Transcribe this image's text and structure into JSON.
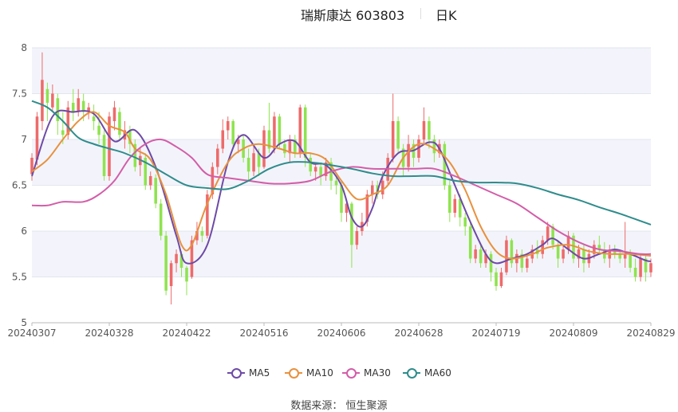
{
  "header": {
    "title": "瑞斯康达 603803",
    "tab": "日K"
  },
  "colors": {
    "up": "#ee6a6a",
    "down": "#8fe34f",
    "ma5": "#6e4aa6",
    "ma10": "#e8913e",
    "ma30": "#d35da8",
    "ma60": "#2f8c8c",
    "band": "#f3f4fb",
    "grid": "#e2e4ef"
  },
  "legend": [
    {
      "key": "ma5",
      "label": "MA5"
    },
    {
      "key": "ma10",
      "label": "MA10"
    },
    {
      "key": "ma30",
      "label": "MA30"
    },
    {
      "key": "ma60",
      "label": "MA60"
    }
  ],
  "source": "数据来源： 恒生聚源",
  "chart_data": {
    "type": "candlestick",
    "ylim": [
      5,
      8
    ],
    "yticks": [
      "5",
      "5.5",
      "6",
      "6.5",
      "7",
      "7.5",
      "8"
    ],
    "xtick_labels": [
      "20240307",
      "20240328",
      "20240422",
      "20240516",
      "20240606",
      "20240628",
      "20240719",
      "20240809",
      "20240829"
    ],
    "xtick_index": [
      0,
      15,
      30,
      45,
      60,
      75,
      90,
      105,
      120
    ],
    "candles": [
      [
        6.62,
        6.8,
        6.55,
        6.85
      ],
      [
        6.78,
        7.25,
        6.72,
        7.3
      ],
      [
        7.2,
        7.65,
        7.1,
        7.95
      ],
      [
        7.55,
        7.4,
        7.2,
        7.62
      ],
      [
        7.35,
        7.5,
        7.3,
        7.6
      ],
      [
        7.45,
        7.2,
        7.05,
        7.5
      ],
      [
        7.1,
        7.05,
        6.95,
        7.3
      ],
      [
        7.05,
        7.35,
        7.0,
        7.42
      ],
      [
        7.4,
        7.3,
        7.2,
        7.55
      ],
      [
        7.3,
        7.45,
        7.25,
        7.55
      ],
      [
        7.42,
        7.3,
        7.2,
        7.5
      ],
      [
        7.3,
        7.35,
        7.22,
        7.4
      ],
      [
        7.25,
        7.2,
        7.1,
        7.38
      ],
      [
        7.15,
        7.05,
        6.95,
        7.3
      ],
      [
        7.05,
        6.6,
        6.55,
        7.1
      ],
      [
        6.6,
        7.25,
        6.55,
        7.3
      ],
      [
        7.2,
        7.35,
        7.1,
        7.42
      ],
      [
        7.3,
        7.05,
        7.0,
        7.35
      ],
      [
        7.0,
        7.1,
        6.9,
        7.2
      ],
      [
        7.1,
        6.95,
        6.85,
        7.15
      ],
      [
        6.95,
        6.7,
        6.65,
        7.0
      ],
      [
        6.72,
        6.82,
        6.6,
        6.9
      ],
      [
        6.8,
        6.5,
        6.45,
        6.85
      ],
      [
        6.5,
        6.6,
        6.45,
        6.65
      ],
      [
        6.58,
        6.3,
        6.25,
        6.62
      ],
      [
        6.3,
        5.95,
        5.9,
        6.35
      ],
      [
        5.95,
        5.35,
        5.3,
        6.0
      ],
      [
        5.4,
        5.65,
        5.2,
        5.68
      ],
      [
        5.65,
        5.75,
        5.55,
        5.8
      ],
      [
        5.75,
        5.6,
        5.5,
        5.78
      ],
      [
        5.6,
        5.45,
        5.3,
        5.62
      ],
      [
        5.5,
        5.9,
        5.48,
        5.95
      ],
      [
        5.9,
        6.0,
        5.85,
        6.1
      ],
      [
        6.0,
        5.95,
        5.88,
        6.05
      ],
      [
        5.95,
        6.4,
        5.92,
        6.45
      ],
      [
        6.4,
        6.7,
        6.35,
        6.75
      ],
      [
        6.7,
        6.9,
        6.62,
        6.95
      ],
      [
        6.9,
        7.1,
        6.85,
        7.22
      ],
      [
        7.1,
        7.2,
        7.0,
        7.25
      ],
      [
        7.2,
        6.95,
        6.9,
        7.22
      ],
      [
        6.95,
        7.0,
        6.85,
        7.05
      ],
      [
        7.0,
        6.8,
        6.75,
        7.05
      ],
      [
        6.8,
        6.65,
        6.55,
        6.9
      ],
      [
        6.65,
        6.85,
        6.6,
        6.95
      ],
      [
        6.85,
        6.7,
        6.6,
        6.9
      ],
      [
        6.7,
        7.1,
        6.68,
        7.15
      ],
      [
        7.1,
        6.9,
        6.85,
        7.4
      ],
      [
        6.9,
        7.25,
        6.85,
        7.3
      ],
      [
        7.25,
        6.95,
        6.9,
        7.28
      ],
      [
        6.95,
        6.85,
        6.8,
        7.0
      ],
      [
        6.85,
        7.0,
        6.75,
        7.05
      ],
      [
        7.0,
        6.85,
        6.8,
        7.05
      ],
      [
        6.85,
        7.35,
        6.8,
        7.38
      ],
      [
        7.35,
        6.8,
        6.7,
        7.38
      ],
      [
        6.8,
        6.65,
        6.6,
        6.85
      ],
      [
        6.65,
        6.7,
        6.55,
        6.75
      ],
      [
        6.7,
        6.6,
        6.5,
        6.75
      ],
      [
        6.6,
        6.75,
        6.55,
        6.8
      ],
      [
        6.75,
        6.55,
        6.45,
        6.8
      ],
      [
        6.55,
        6.5,
        6.4,
        6.6
      ],
      [
        6.5,
        6.2,
        6.1,
        6.55
      ],
      [
        6.2,
        6.3,
        6.1,
        6.35
      ],
      [
        6.3,
        5.85,
        5.6,
        6.32
      ],
      [
        5.85,
        6.0,
        5.8,
        6.05
      ],
      [
        6.0,
        6.1,
        5.95,
        6.2
      ],
      [
        6.1,
        6.4,
        6.05,
        6.45
      ],
      [
        6.4,
        6.5,
        6.3,
        6.55
      ],
      [
        6.5,
        6.4,
        6.35,
        6.55
      ],
      [
        6.4,
        6.55,
        6.35,
        6.65
      ],
      [
        6.55,
        6.8,
        6.5,
        6.85
      ],
      [
        6.8,
        7.2,
        6.75,
        7.5
      ],
      [
        7.2,
        6.9,
        6.85,
        7.25
      ],
      [
        6.9,
        6.7,
        6.6,
        6.95
      ],
      [
        6.7,
        6.95,
        6.65,
        7.05
      ],
      [
        6.95,
        6.8,
        6.7,
        7.0
      ],
      [
        6.8,
        7.0,
        6.75,
        7.05
      ],
      [
        7.0,
        7.2,
        6.95,
        7.35
      ],
      [
        7.2,
        7.0,
        6.9,
        7.25
      ],
      [
        7.0,
        6.85,
        6.75,
        7.05
      ],
      [
        6.85,
        6.95,
        6.8,
        7.0
      ],
      [
        6.95,
        6.5,
        6.45,
        6.98
      ],
      [
        6.5,
        6.2,
        6.1,
        6.55
      ],
      [
        6.2,
        6.35,
        6.15,
        6.4
      ],
      [
        6.35,
        6.15,
        6.05,
        6.4
      ],
      [
        6.15,
        6.05,
        5.95,
        6.2
      ],
      [
        6.05,
        5.7,
        5.65,
        6.1
      ],
      [
        5.7,
        5.8,
        5.65,
        5.85
      ],
      [
        5.8,
        5.65,
        5.6,
        5.85
      ],
      [
        5.65,
        5.75,
        5.6,
        5.8
      ],
      [
        5.75,
        5.55,
        5.45,
        5.78
      ],
      [
        5.55,
        5.4,
        5.35,
        5.6
      ],
      [
        5.4,
        5.55,
        5.38,
        5.6
      ],
      [
        5.55,
        5.9,
        5.52,
        5.95
      ],
      [
        5.9,
        5.65,
        5.6,
        5.92
      ],
      [
        5.65,
        5.75,
        5.55,
        5.8
      ],
      [
        5.75,
        5.6,
        5.55,
        5.8
      ],
      [
        5.6,
        5.7,
        5.55,
        5.75
      ],
      [
        5.7,
        5.8,
        5.65,
        5.85
      ],
      [
        5.8,
        5.75,
        5.7,
        5.9
      ],
      [
        5.75,
        5.9,
        5.7,
        5.95
      ],
      [
        5.9,
        6.05,
        5.85,
        6.1
      ],
      [
        6.05,
        5.85,
        5.8,
        6.08
      ],
      [
        5.85,
        5.7,
        5.6,
        5.9
      ],
      [
        5.7,
        5.8,
        5.65,
        5.85
      ],
      [
        5.8,
        5.95,
        5.75,
        6.0
      ],
      [
        5.95,
        5.7,
        5.65,
        5.98
      ],
      [
        5.7,
        5.8,
        5.6,
        5.85
      ],
      [
        5.8,
        5.65,
        5.55,
        5.85
      ],
      [
        5.65,
        5.75,
        5.6,
        5.8
      ],
      [
        5.75,
        5.85,
        5.7,
        5.9
      ],
      [
        5.85,
        5.8,
        5.75,
        5.95
      ],
      [
        5.8,
        5.7,
        5.65,
        5.88
      ],
      [
        5.7,
        5.8,
        5.6,
        5.85
      ],
      [
        5.8,
        5.75,
        5.7,
        5.85
      ],
      [
        5.75,
        5.7,
        5.65,
        5.8
      ],
      [
        5.7,
        5.75,
        5.6,
        6.1
      ],
      [
        5.75,
        5.6,
        5.55,
        5.8
      ],
      [
        5.6,
        5.5,
        5.45,
        5.7
      ],
      [
        5.5,
        5.7,
        5.45,
        5.75
      ],
      [
        5.7,
        5.55,
        5.45,
        5.75
      ],
      [
        5.55,
        5.65,
        5.5,
        5.7
      ]
    ],
    "series": [
      {
        "key": "ma5",
        "name": "MA5",
        "points": [
          [
            0,
            6.6
          ],
          [
            4,
            7.25
          ],
          [
            8,
            7.3
          ],
          [
            12,
            7.28
          ],
          [
            16,
            6.98
          ],
          [
            20,
            7.1
          ],
          [
            24,
            6.7
          ],
          [
            28,
            5.95
          ],
          [
            30,
            5.65
          ],
          [
            34,
            5.85
          ],
          [
            38,
            6.75
          ],
          [
            41,
            7.05
          ],
          [
            45,
            6.8
          ],
          [
            48,
            6.95
          ],
          [
            51,
            6.98
          ],
          [
            54,
            6.75
          ],
          [
            57,
            6.72
          ],
          [
            60,
            6.5
          ],
          [
            62,
            6.15
          ],
          [
            64,
            6.05
          ],
          [
            66,
            6.25
          ],
          [
            68,
            6.6
          ],
          [
            71,
            6.85
          ],
          [
            74,
            6.88
          ],
          [
            77,
            6.97
          ],
          [
            79,
            6.9
          ],
          [
            82,
            6.5
          ],
          [
            85,
            6.1
          ],
          [
            88,
            5.75
          ],
          [
            90,
            5.65
          ],
          [
            93,
            5.7
          ],
          [
            96,
            5.75
          ],
          [
            99,
            5.85
          ],
          [
            101,
            5.92
          ],
          [
            104,
            5.8
          ],
          [
            107,
            5.7
          ],
          [
            110,
            5.75
          ],
          [
            113,
            5.8
          ],
          [
            116,
            5.75
          ],
          [
            119,
            5.68
          ],
          [
            120,
            5.67
          ]
        ]
      },
      {
        "key": "ma10",
        "name": "MA10",
        "points": [
          [
            0,
            6.65
          ],
          [
            3,
            6.78
          ],
          [
            6,
            7.0
          ],
          [
            9,
            7.2
          ],
          [
            12,
            7.3
          ],
          [
            15,
            7.15
          ],
          [
            18,
            7.08
          ],
          [
            20,
            6.9
          ],
          [
            23,
            6.78
          ],
          [
            26,
            6.4
          ],
          [
            29,
            5.85
          ],
          [
            31,
            5.85
          ],
          [
            34,
            6.3
          ],
          [
            38,
            6.75
          ],
          [
            41,
            6.9
          ],
          [
            44,
            6.95
          ],
          [
            48,
            6.9
          ],
          [
            51,
            6.85
          ],
          [
            54,
            6.85
          ],
          [
            57,
            6.78
          ],
          [
            60,
            6.55
          ],
          [
            63,
            6.35
          ],
          [
            66,
            6.4
          ],
          [
            69,
            6.5
          ],
          [
            72,
            6.8
          ],
          [
            75,
            6.95
          ],
          [
            78,
            6.9
          ],
          [
            81,
            6.75
          ],
          [
            84,
            6.45
          ],
          [
            87,
            6.05
          ],
          [
            90,
            5.78
          ],
          [
            93,
            5.7
          ],
          [
            97,
            5.75
          ],
          [
            100,
            5.82
          ],
          [
            104,
            5.85
          ],
          [
            108,
            5.78
          ],
          [
            112,
            5.75
          ],
          [
            116,
            5.75
          ],
          [
            120,
            5.73
          ]
        ]
      },
      {
        "key": "ma30",
        "name": "MA30",
        "points": [
          [
            0,
            6.28
          ],
          [
            3,
            6.28
          ],
          [
            6,
            6.32
          ],
          [
            10,
            6.32
          ],
          [
            13,
            6.4
          ],
          [
            16,
            6.55
          ],
          [
            19,
            6.8
          ],
          [
            22,
            6.95
          ],
          [
            25,
            7.0
          ],
          [
            28,
            6.92
          ],
          [
            31,
            6.8
          ],
          [
            34,
            6.62
          ],
          [
            38,
            6.58
          ],
          [
            42,
            6.55
          ],
          [
            46,
            6.52
          ],
          [
            50,
            6.52
          ],
          [
            54,
            6.55
          ],
          [
            58,
            6.65
          ],
          [
            62,
            6.7
          ],
          [
            66,
            6.68
          ],
          [
            70,
            6.68
          ],
          [
            74,
            6.68
          ],
          [
            78,
            6.68
          ],
          [
            82,
            6.6
          ],
          [
            86,
            6.5
          ],
          [
            90,
            6.4
          ],
          [
            94,
            6.3
          ],
          [
            98,
            6.15
          ],
          [
            102,
            6.0
          ],
          [
            106,
            5.88
          ],
          [
            110,
            5.8
          ],
          [
            114,
            5.78
          ],
          [
            118,
            5.75
          ],
          [
            120,
            5.75
          ]
        ]
      },
      {
        "key": "ma60",
        "name": "MA60",
        "points": [
          [
            0,
            7.42
          ],
          [
            3,
            7.35
          ],
          [
            6,
            7.2
          ],
          [
            9,
            7.02
          ],
          [
            12,
            6.95
          ],
          [
            15,
            6.9
          ],
          [
            18,
            6.85
          ],
          [
            22,
            6.75
          ],
          [
            26,
            6.62
          ],
          [
            30,
            6.5
          ],
          [
            34,
            6.47
          ],
          [
            38,
            6.46
          ],
          [
            42,
            6.55
          ],
          [
            46,
            6.68
          ],
          [
            50,
            6.75
          ],
          [
            54,
            6.75
          ],
          [
            58,
            6.72
          ],
          [
            62,
            6.68
          ],
          [
            66,
            6.63
          ],
          [
            70,
            6.6
          ],
          [
            74,
            6.6
          ],
          [
            78,
            6.6
          ],
          [
            82,
            6.55
          ],
          [
            86,
            6.53
          ],
          [
            90,
            6.53
          ],
          [
            94,
            6.52
          ],
          [
            98,
            6.47
          ],
          [
            102,
            6.4
          ],
          [
            106,
            6.34
          ],
          [
            110,
            6.26
          ],
          [
            114,
            6.19
          ],
          [
            118,
            6.11
          ],
          [
            120,
            6.07
          ]
        ]
      }
    ]
  }
}
